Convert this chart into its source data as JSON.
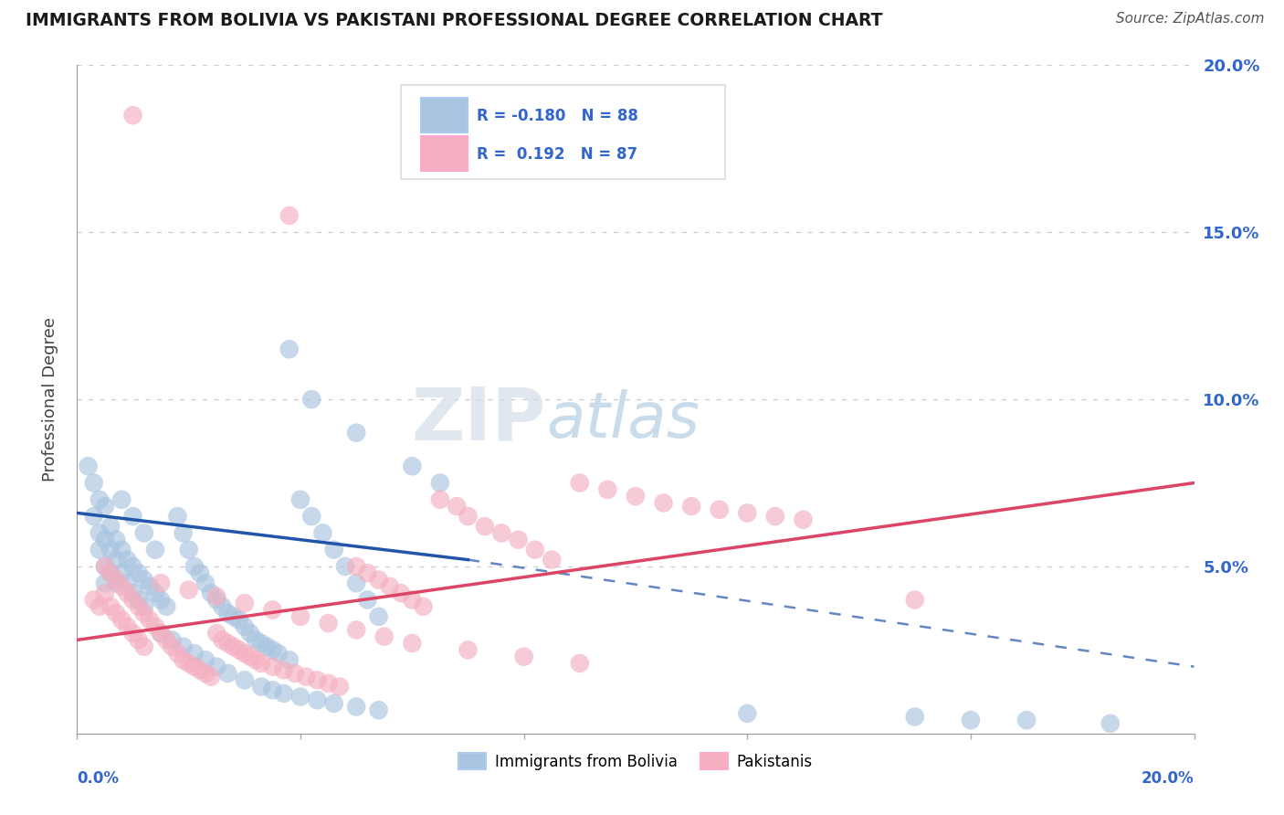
{
  "title": "IMMIGRANTS FROM BOLIVIA VS PAKISTANI PROFESSIONAL DEGREE CORRELATION CHART",
  "source": "Source: ZipAtlas.com",
  "ylabel": "Professional Degree",
  "xlim": [
    0.0,
    0.2
  ],
  "ylim": [
    0.0,
    0.2
  ],
  "legend_label1": "Immigrants from Bolivia",
  "legend_label2": "Pakistanis",
  "blue_color": "#a8c4e0",
  "pink_color": "#f4afc0",
  "blue_edge_color": "#a8c4e0",
  "pink_edge_color": "#f4afc0",
  "blue_line_color": "#2255aa",
  "pink_line_color": "#dd4466",
  "watermark_zip_color": "#d0dce8",
  "watermark_atlas_color": "#b0c8e0",
  "background_color": "#ffffff",
  "grid_color": "#cccccc",
  "right_axis_color": "#3366cc",
  "title_color": "#1a1a1a",
  "source_color": "#555555",
  "legend_text_color": "#3366cc",
  "ylabel_color": "#444444"
}
